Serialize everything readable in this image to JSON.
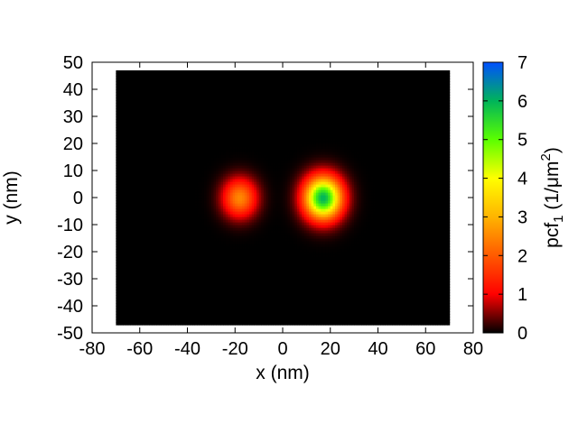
{
  "chart_data": {
    "type": "heatmap",
    "xlabel": "x (nm)",
    "ylabel": "y (nm)",
    "colorbar_label": {
      "main": "pcf",
      "subscript": "1",
      "unit_open": " (1/",
      "unit_mu": "μ",
      "unit_m": "m",
      "unit_sup": "2",
      "unit_close": ")"
    },
    "xlim": [
      -80,
      80
    ],
    "ylim": [
      -50,
      50
    ],
    "clim": [
      0,
      7
    ],
    "data_extent": {
      "x": [
        -70,
        70
      ],
      "y": [
        -47,
        47
      ]
    },
    "x_ticks": [
      -80,
      -60,
      -40,
      -20,
      0,
      20,
      40,
      60,
      80
    ],
    "y_ticks": [
      -50,
      -40,
      -30,
      -20,
      -10,
      0,
      10,
      20,
      30,
      40,
      50
    ],
    "colorbar_ticks": [
      0,
      1,
      2,
      3,
      4,
      5,
      6,
      7
    ],
    "colormap": [
      {
        "value": 0,
        "color": "#000000"
      },
      {
        "value": 1,
        "color": "#ff0000"
      },
      {
        "value": 2,
        "color": "#ff5a00"
      },
      {
        "value": 3,
        "color": "#ffb400"
      },
      {
        "value": 4,
        "color": "#ffff00"
      },
      {
        "value": 5,
        "color": "#5aff00"
      },
      {
        "value": 6,
        "color": "#00b45a"
      },
      {
        "value": 7,
        "color": "#0050ff"
      }
    ],
    "peaks": [
      {
        "x": -18,
        "y": 0,
        "value": 2.5,
        "sigma": 5.0
      },
      {
        "x": 17,
        "y": 0,
        "value": 6.0,
        "sigma": 5.5
      }
    ],
    "grid": false,
    "legend": "none"
  }
}
